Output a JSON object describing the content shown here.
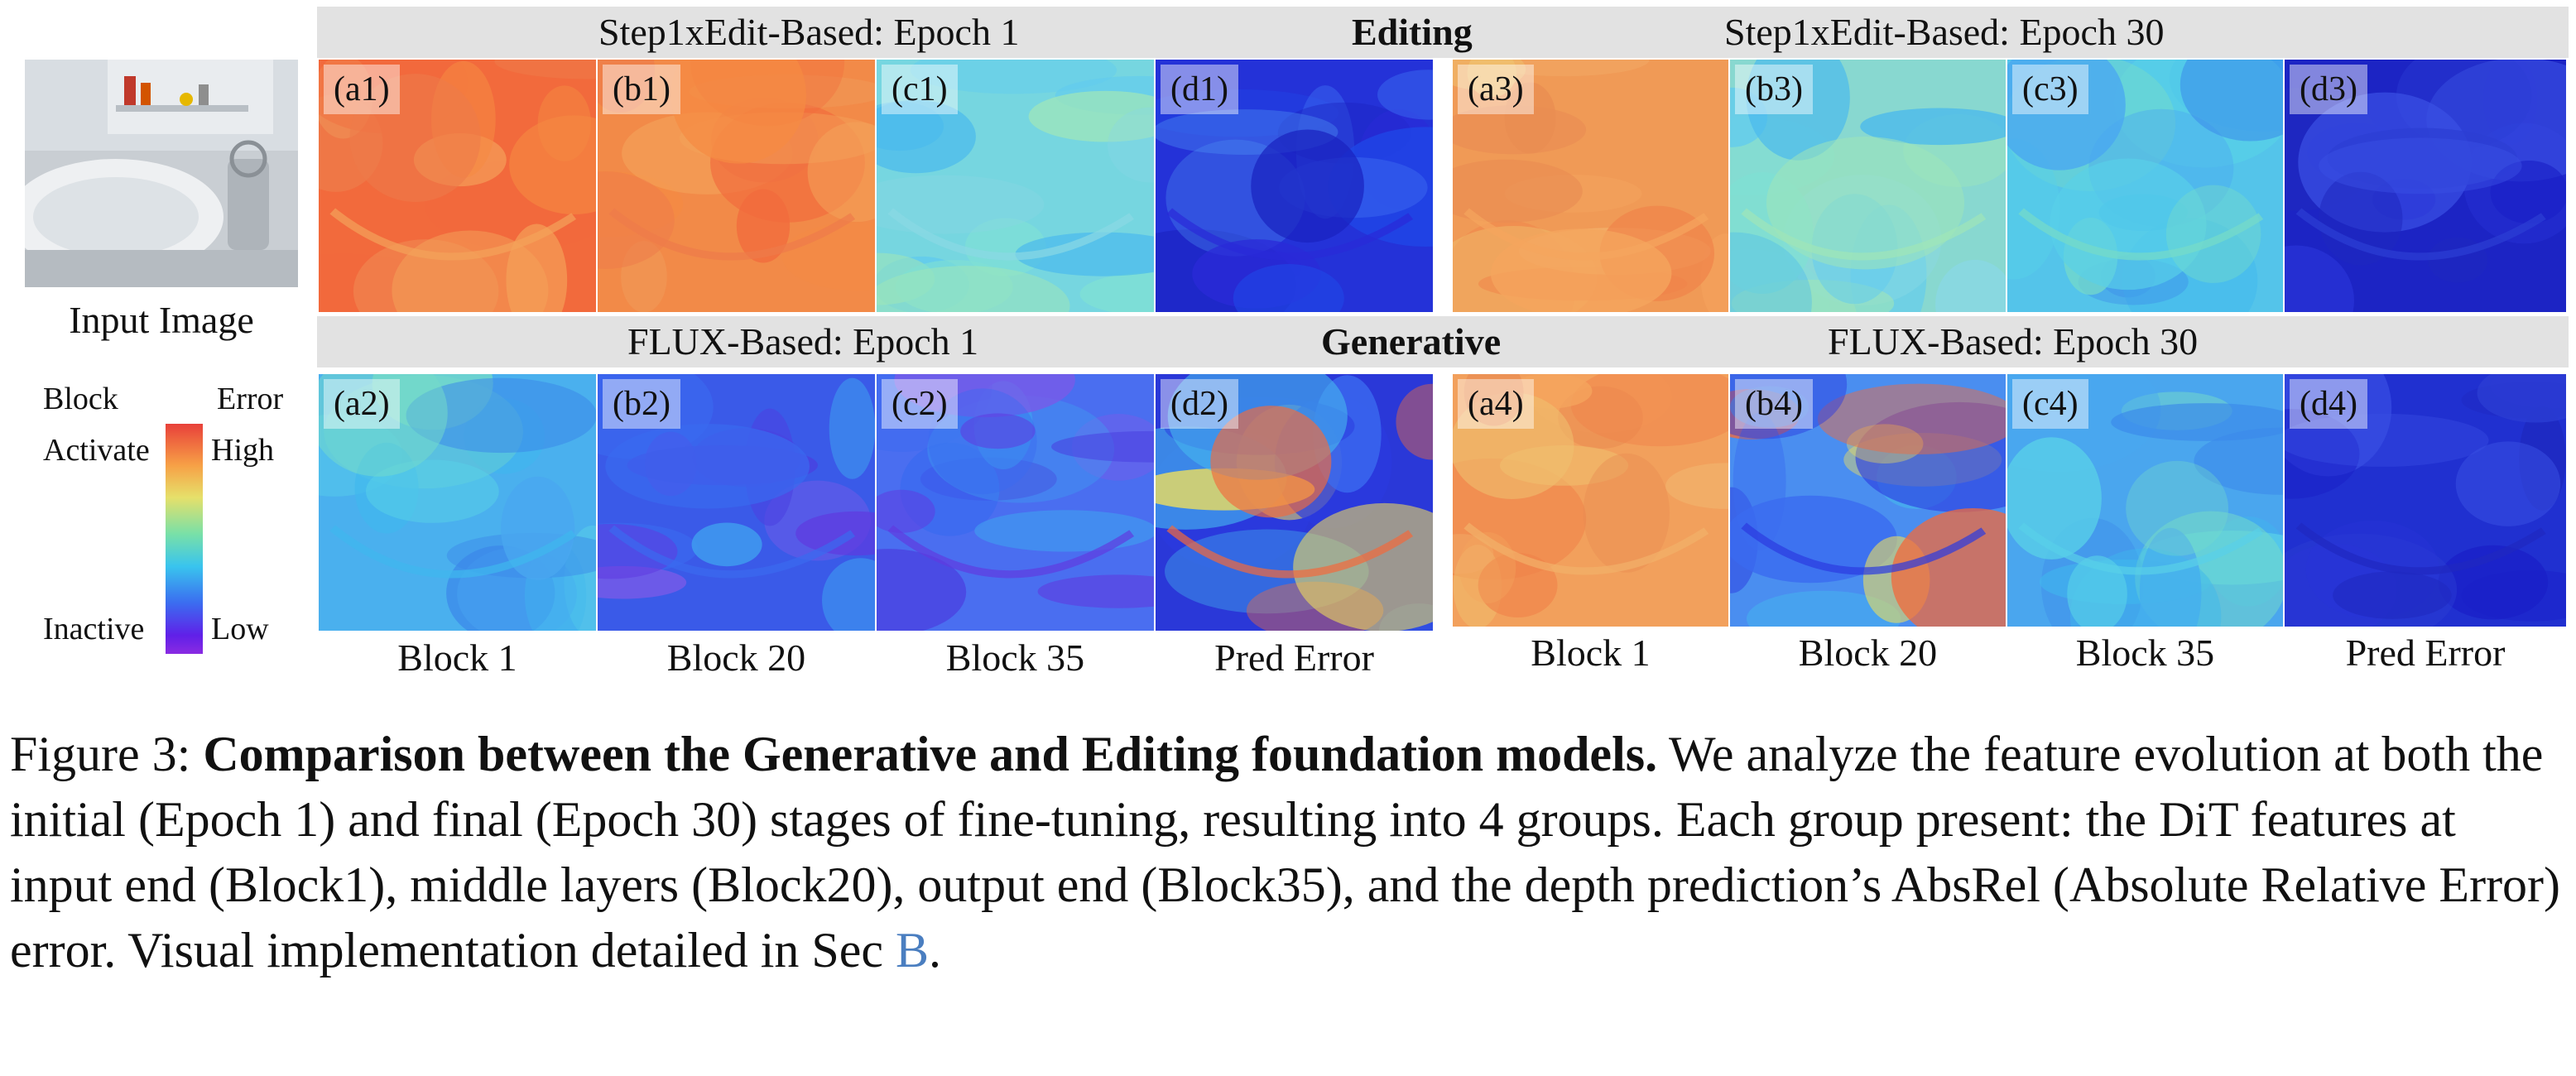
{
  "input": {
    "label": "Input Image"
  },
  "legend": {
    "block": "Block",
    "error": "Error",
    "activate": "Activate",
    "high": "High",
    "inactive": "Inactive",
    "low": "Low"
  },
  "headers": {
    "editing_epoch1": "Step1xEdit-Based: Epoch 1",
    "editing": "Editing",
    "editing_epoch30": "Step1xEdit-Based: Epoch 30",
    "gen_epoch1": "FLUX-Based: Epoch 1",
    "generative": "Generative",
    "gen_epoch30": "FLUX-Based: Epoch 30"
  },
  "panels": {
    "a1": "(a1)",
    "b1": "(b1)",
    "c1": "(c1)",
    "d1": "(d1)",
    "a3": "(a3)",
    "b3": "(b3)",
    "c3": "(c3)",
    "d3": "(d3)",
    "a2": "(a2)",
    "b2": "(b2)",
    "c2": "(c2)",
    "d2": "(d2)",
    "a4": "(a4)",
    "b4": "(b4)",
    "c4": "(c4)",
    "d4": "(d4)"
  },
  "columns": {
    "left": [
      "Block 1",
      "Block 20",
      "Block 35",
      "Pred Error"
    ],
    "right": [
      "Block 1",
      "Block 20",
      "Block 35",
      "Pred Error"
    ]
  },
  "caption": {
    "prefix": "Figure 3: ",
    "bold": "Comparison between the Generative and Editing foundation models.",
    "body": " We analyze the feature evolution at both the initial (Epoch 1) and final (Epoch 30) stages of fine-tuning, resulting into 4 groups. Each group present: the DiT features at input end (Block1), middle layers (Block20), output end (Block35), and the depth prediction’s AbsRel (Absolute Relative Error) error.  Visual implementation detailed in Sec ",
    "link": "B",
    "end": "."
  },
  "colors": {
    "header_bg": "#e2e2e2",
    "link": "#4a7ec0"
  }
}
